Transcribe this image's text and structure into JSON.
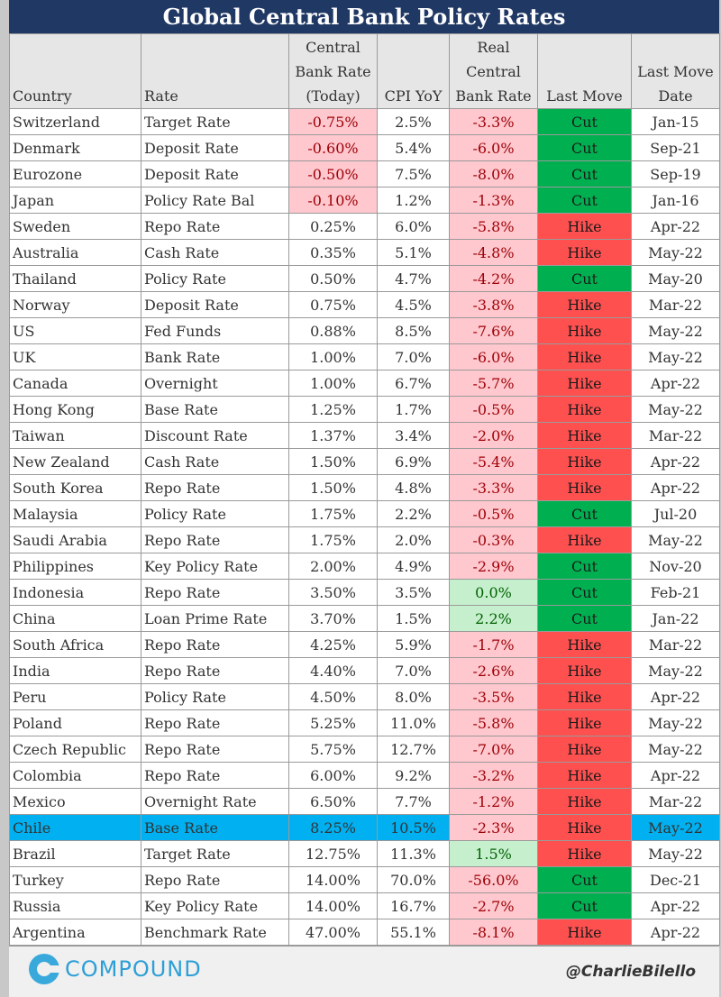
{
  "title": "Global Central Bank Policy Rates",
  "headers": {
    "country": "Country",
    "rate": "Rate",
    "cb_rate_l1": "Central",
    "cb_rate_l2": "Bank Rate",
    "cb_rate_l3": "(Today)",
    "cpi": "CPI YoY",
    "real_l1": "Real",
    "real_l2": "Central",
    "real_l3": "Bank Rate",
    "last_move": "Last Move",
    "last_date_l1": "Last Move",
    "last_date_l2": "Date"
  },
  "rows": [
    {
      "country": "Switzerland",
      "rate": "Target Rate",
      "cb": "-0.75%",
      "cb_neg": true,
      "cpi": "2.5%",
      "real": "-3.3%",
      "real_pos": false,
      "move": "Cut",
      "date": "Jan-15"
    },
    {
      "country": "Denmark",
      "rate": "Deposit Rate",
      "cb": "-0.60%",
      "cb_neg": true,
      "cpi": "5.4%",
      "real": "-6.0%",
      "real_pos": false,
      "move": "Cut",
      "date": "Sep-21"
    },
    {
      "country": "Eurozone",
      "rate": "Deposit Rate",
      "cb": "-0.50%",
      "cb_neg": true,
      "cpi": "7.5%",
      "real": "-8.0%",
      "real_pos": false,
      "move": "Cut",
      "date": "Sep-19"
    },
    {
      "country": "Japan",
      "rate": "Policy Rate Bal",
      "cb": "-0.10%",
      "cb_neg": true,
      "cpi": "1.2%",
      "real": "-1.3%",
      "real_pos": false,
      "move": "Cut",
      "date": "Jan-16"
    },
    {
      "country": "Sweden",
      "rate": "Repo Rate",
      "cb": "0.25%",
      "cb_neg": false,
      "cpi": "6.0%",
      "real": "-5.8%",
      "real_pos": false,
      "move": "Hike",
      "date": "Apr-22"
    },
    {
      "country": "Australia",
      "rate": "Cash Rate",
      "cb": "0.35%",
      "cb_neg": false,
      "cpi": "5.1%",
      "real": "-4.8%",
      "real_pos": false,
      "move": "Hike",
      "date": "May-22"
    },
    {
      "country": "Thailand",
      "rate": "Policy Rate",
      "cb": "0.50%",
      "cb_neg": false,
      "cpi": "4.7%",
      "real": "-4.2%",
      "real_pos": false,
      "move": "Cut",
      "date": "May-20"
    },
    {
      "country": "Norway",
      "rate": "Deposit Rate",
      "cb": "0.75%",
      "cb_neg": false,
      "cpi": "4.5%",
      "real": "-3.8%",
      "real_pos": false,
      "move": "Hike",
      "date": "Mar-22"
    },
    {
      "country": "US",
      "rate": "Fed Funds",
      "cb": "0.88%",
      "cb_neg": false,
      "cpi": "8.5%",
      "real": "-7.6%",
      "real_pos": false,
      "move": "Hike",
      "date": "May-22"
    },
    {
      "country": "UK",
      "rate": "Bank Rate",
      "cb": "1.00%",
      "cb_neg": false,
      "cpi": "7.0%",
      "real": "-6.0%",
      "real_pos": false,
      "move": "Hike",
      "date": "May-22"
    },
    {
      "country": "Canada",
      "rate": "Overnight",
      "cb": "1.00%",
      "cb_neg": false,
      "cpi": "6.7%",
      "real": "-5.7%",
      "real_pos": false,
      "move": "Hike",
      "date": "Apr-22"
    },
    {
      "country": "Hong Kong",
      "rate": "Base Rate",
      "cb": "1.25%",
      "cb_neg": false,
      "cpi": "1.7%",
      "real": "-0.5%",
      "real_pos": false,
      "move": "Hike",
      "date": "May-22"
    },
    {
      "country": "Taiwan",
      "rate": "Discount Rate",
      "cb": "1.37%",
      "cb_neg": false,
      "cpi": "3.4%",
      "real": "-2.0%",
      "real_pos": false,
      "move": "Hike",
      "date": "Mar-22"
    },
    {
      "country": "New Zealand",
      "rate": "Cash Rate",
      "cb": "1.50%",
      "cb_neg": false,
      "cpi": "6.9%",
      "real": "-5.4%",
      "real_pos": false,
      "move": "Hike",
      "date": "Apr-22"
    },
    {
      "country": "South Korea",
      "rate": "Repo Rate",
      "cb": "1.50%",
      "cb_neg": false,
      "cpi": "4.8%",
      "real": "-3.3%",
      "real_pos": false,
      "move": "Hike",
      "date": "Apr-22"
    },
    {
      "country": "Malaysia",
      "rate": "Policy Rate",
      "cb": "1.75%",
      "cb_neg": false,
      "cpi": "2.2%",
      "real": "-0.5%",
      "real_pos": false,
      "move": "Cut",
      "date": "Jul-20"
    },
    {
      "country": "Saudi Arabia",
      "rate": "Repo Rate",
      "cb": "1.75%",
      "cb_neg": false,
      "cpi": "2.0%",
      "real": "-0.3%",
      "real_pos": false,
      "move": "Hike",
      "date": "May-22"
    },
    {
      "country": "Philippines",
      "rate": "Key Policy Rate",
      "cb": "2.00%",
      "cb_neg": false,
      "cpi": "4.9%",
      "real": "-2.9%",
      "real_pos": false,
      "move": "Cut",
      "date": "Nov-20"
    },
    {
      "country": "Indonesia",
      "rate": "Repo Rate",
      "cb": "3.50%",
      "cb_neg": false,
      "cpi": "3.5%",
      "real": "0.0%",
      "real_pos": true,
      "move": "Cut",
      "date": "Feb-21"
    },
    {
      "country": "China",
      "rate": "Loan Prime Rate",
      "cb": "3.70%",
      "cb_neg": false,
      "cpi": "1.5%",
      "real": "2.2%",
      "real_pos": true,
      "move": "Cut",
      "date": "Jan-22"
    },
    {
      "country": "South Africa",
      "rate": "Repo Rate",
      "cb": "4.25%",
      "cb_neg": false,
      "cpi": "5.9%",
      "real": "-1.7%",
      "real_pos": false,
      "move": "Hike",
      "date": "Mar-22"
    },
    {
      "country": "India",
      "rate": "Repo Rate",
      "cb": "4.40%",
      "cb_neg": false,
      "cpi": "7.0%",
      "real": "-2.6%",
      "real_pos": false,
      "move": "Hike",
      "date": "May-22"
    },
    {
      "country": "Peru",
      "rate": "Policy Rate",
      "cb": "4.50%",
      "cb_neg": false,
      "cpi": "8.0%",
      "real": "-3.5%",
      "real_pos": false,
      "move": "Hike",
      "date": "Apr-22"
    },
    {
      "country": "Poland",
      "rate": "Repo Rate",
      "cb": "5.25%",
      "cb_neg": false,
      "cpi": "11.0%",
      "real": "-5.8%",
      "real_pos": false,
      "move": "Hike",
      "date": "May-22"
    },
    {
      "country": "Czech Republic",
      "rate": "Repo Rate",
      "cb": "5.75%",
      "cb_neg": false,
      "cpi": "12.7%",
      "real": "-7.0%",
      "real_pos": false,
      "move": "Hike",
      "date": "May-22"
    },
    {
      "country": "Colombia",
      "rate": "Repo Rate",
      "cb": "6.00%",
      "cb_neg": false,
      "cpi": "9.2%",
      "real": "-3.2%",
      "real_pos": false,
      "move": "Hike",
      "date": "Apr-22"
    },
    {
      "country": "Mexico",
      "rate": "Overnight Rate",
      "cb": "6.50%",
      "cb_neg": false,
      "cpi": "7.7%",
      "real": "-1.2%",
      "real_pos": false,
      "move": "Hike",
      "date": "Mar-22"
    },
    {
      "country": "Chile",
      "rate": "Base Rate",
      "cb": "8.25%",
      "cb_neg": false,
      "cpi": "10.5%",
      "real": "-2.3%",
      "real_pos": false,
      "move": "Hike",
      "date": "May-22",
      "highlight": true
    },
    {
      "country": "Brazil",
      "rate": "Target Rate",
      "cb": "12.75%",
      "cb_neg": false,
      "cpi": "11.3%",
      "real": "1.5%",
      "real_pos": true,
      "move": "Hike",
      "date": "May-22"
    },
    {
      "country": "Turkey",
      "rate": "Repo Rate",
      "cb": "14.00%",
      "cb_neg": false,
      "cpi": "70.0%",
      "real": "-56.0%",
      "real_pos": false,
      "move": "Cut",
      "date": "Dec-21"
    },
    {
      "country": "Russia",
      "rate": "Key Policy Rate",
      "cb": "14.00%",
      "cb_neg": false,
      "cpi": "16.7%",
      "real": "-2.7%",
      "real_pos": false,
      "move": "Cut",
      "date": "Apr-22"
    },
    {
      "country": "Argentina",
      "rate": "Benchmark Rate",
      "cb": "47.00%",
      "cb_neg": false,
      "cpi": "55.1%",
      "real": "-8.1%",
      "real_pos": false,
      "move": "Hike",
      "date": "Apr-22"
    }
  ],
  "colors": {
    "title_bg": "#203864",
    "neg_bg": "#ffc7ce",
    "pos_bg": "#c6efce",
    "cut_bg": "#00b050",
    "hike_bg": "#ff5050",
    "highlight_bg": "#00b0f0"
  },
  "footer": {
    "logo_icon": "compound-logo-icon",
    "logo_text": "COMPOUND",
    "handle": "@CharlieBilello"
  }
}
